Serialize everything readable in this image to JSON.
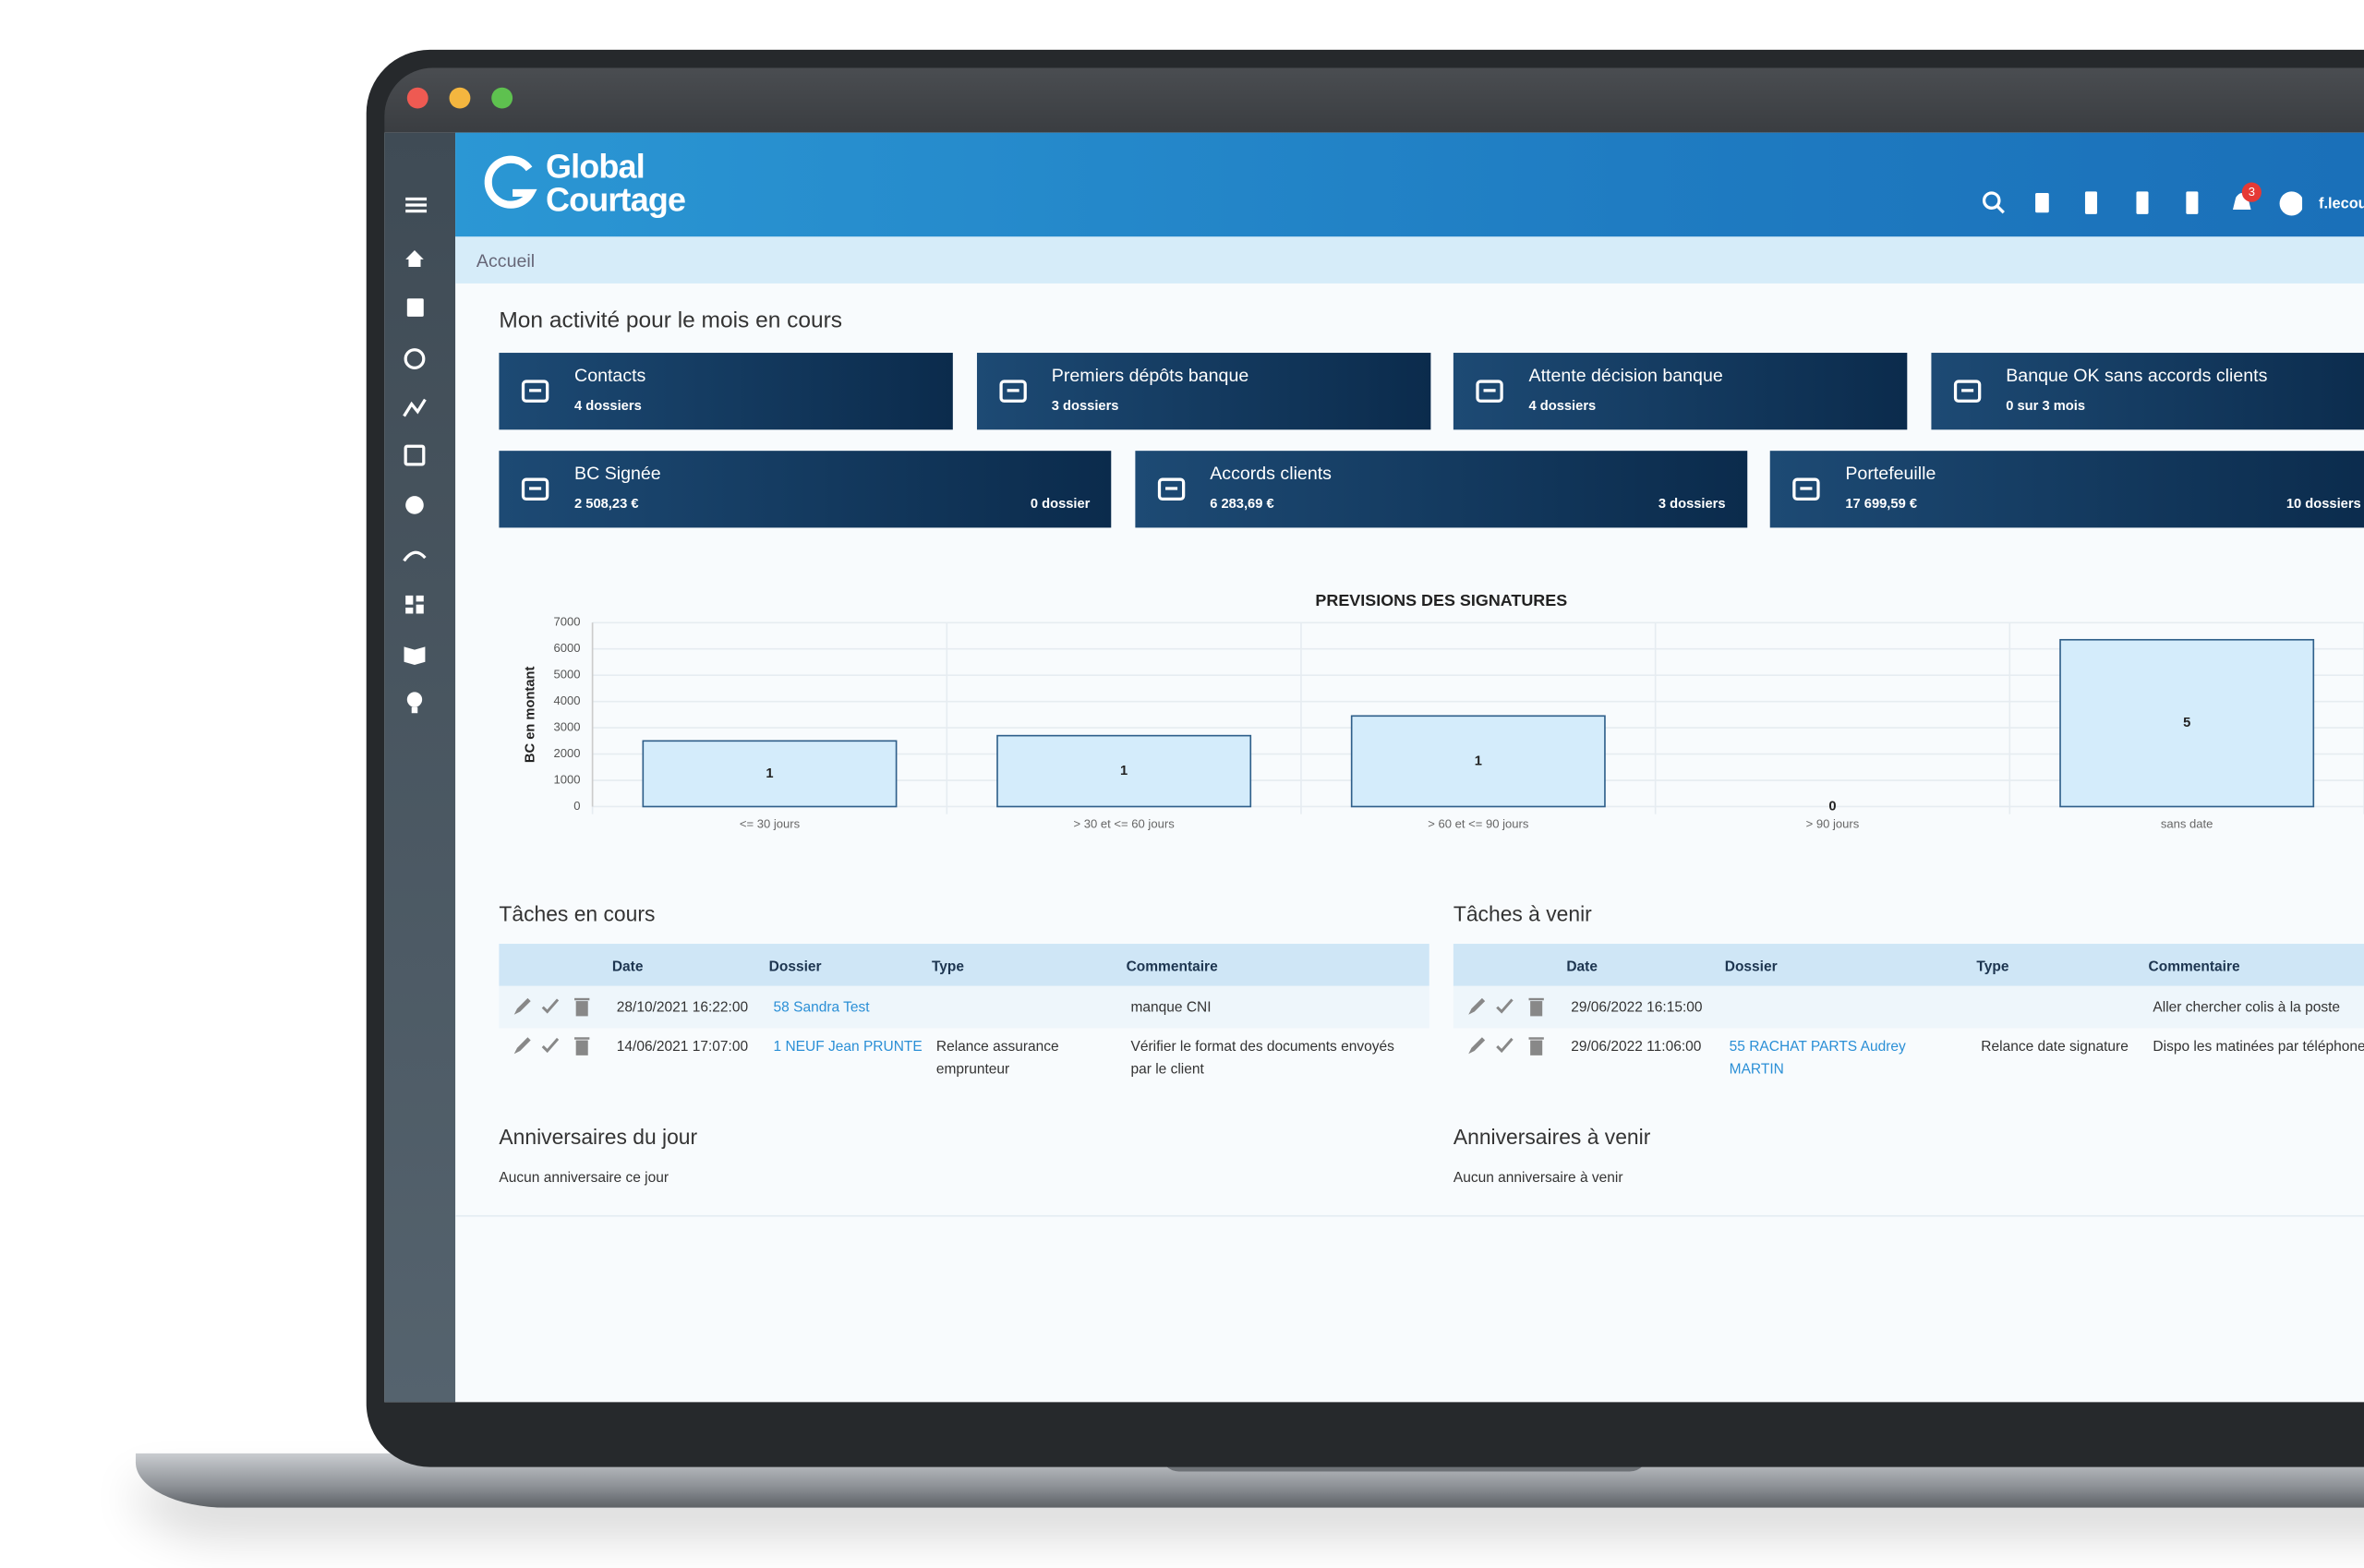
{
  "app": {
    "logo_line1": "Global",
    "logo_line2": "Courtage",
    "user": "f.lecou",
    "notifications": 3
  },
  "breadcrumb": "Accueil",
  "activity": {
    "title": "Mon activité pour le mois en cours",
    "row1": [
      {
        "label": "Contacts",
        "detail": "4 dossiers"
      },
      {
        "label": "Premiers dépôts banque",
        "detail": "3 dossiers"
      },
      {
        "label": "Attente décision banque",
        "detail": "4 dossiers"
      },
      {
        "label": "Banque OK sans accords clients",
        "detail": "0 sur 3 mois"
      }
    ],
    "row2": [
      {
        "label": "BC Signée",
        "amount": "2 508,23 €",
        "count": "0 dossier"
      },
      {
        "label": "Accords clients",
        "amount": "6 283,69 €",
        "count": "3 dossiers"
      },
      {
        "label": "Portefeuille",
        "amount": "17 699,59 €",
        "count": "10 dossiers"
      }
    ]
  },
  "chart_data": {
    "type": "bar",
    "title": "PREVISIONS DES SIGNATURES",
    "y_label": "BC en montant",
    "categories": [
      "<= 30 jours",
      "> 30 et <= 60 jours",
      "> 60 et <= 90 jours",
      "> 90 jours",
      "sans date"
    ],
    "values": [
      2500,
      2700,
      3450,
      0,
      6350
    ],
    "counts": [
      1,
      1,
      1,
      0,
      5
    ],
    "color": "#d4ecfb",
    "edge": "#2f5f8a",
    "ylim": [
      0,
      7000
    ],
    "yticks": [
      0,
      1000,
      2000,
      3000,
      4000,
      5000,
      6000,
      7000
    ],
    "grid": true
  },
  "tasks_current": {
    "title": "Tâches en cours",
    "columns": [
      "Date",
      "Dossier",
      "Type",
      "Commentaire"
    ],
    "rows": [
      [
        "28/10/2021 16:22:00",
        "58 Sandra Test",
        "",
        "manque CNI"
      ],
      [
        "14/06/2021 17:07:00",
        "1 NEUF Jean PRUNTE",
        "Relance assurance emprunteur",
        "Vérifier le format des documents envoyés par le client"
      ]
    ]
  },
  "tasks_upcoming": {
    "title": "Tâches à venir",
    "columns": [
      "Date",
      "Dossier",
      "Type",
      "Commentaire"
    ],
    "rows": [
      [
        "29/06/2022 16:15:00",
        "",
        "",
        "Aller chercher colis à la poste"
      ],
      [
        "29/06/2022 11:06:00",
        "55 RACHAT PARTS Audrey MARTIN",
        "Relance date signature",
        "Dispo les matinées par téléphone"
      ]
    ]
  },
  "birthdays_today": {
    "title": "Anniversaires du jour",
    "text": "Aucun anniversaire ce jour"
  },
  "birthdays_upcoming": {
    "title": "Anniversaires à venir",
    "text": "Aucun anniversaire à venir"
  }
}
